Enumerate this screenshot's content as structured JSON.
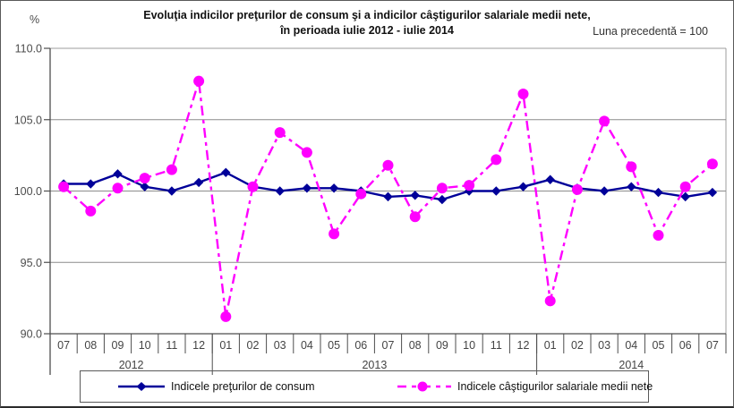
{
  "title": {
    "line1": "Evoluţia indicilor preţurilor de consum şi a indicilor câştigurilor salariale medii nete,",
    "line2": "în perioada iulie 2012 - iulie 2014"
  },
  "note": "Luna precedentă = 100",
  "y_axis_unit": "%",
  "chart_data": {
    "type": "line",
    "title": "Evoluţia indicilor preţurilor de consum şi a indicilor câştigurilor salariale medii nete, în perioada iulie 2012 - iulie 2014",
    "note": "Luna precedentă = 100",
    "ylabel": "%",
    "ylim": [
      90,
      110
    ],
    "yticks": [
      {
        "value": 110,
        "label": "110.0"
      },
      {
        "value": 105,
        "label": "105.0"
      },
      {
        "value": 100,
        "label": "100.0"
      },
      {
        "value": 95,
        "label": "95.0"
      },
      {
        "value": 90,
        "label": "90.0"
      }
    ],
    "grid": "horizontal-only",
    "legend_position": "bottom",
    "categories": [
      "07",
      "08",
      "09",
      "10",
      "11",
      "12",
      "01",
      "02",
      "03",
      "04",
      "05",
      "06",
      "07",
      "08",
      "09",
      "10",
      "11",
      "12",
      "01",
      "02",
      "03",
      "04",
      "05",
      "06",
      "07"
    ],
    "year_groups": [
      {
        "label": "2012",
        "count": 6
      },
      {
        "label": "2013",
        "count": 12
      },
      {
        "label": "2014",
        "count": 7
      }
    ],
    "series": [
      {
        "name": "Indicele preţurilor de consum",
        "color": "#000099",
        "marker": "diamond",
        "line_style": "solid",
        "values": [
          100.5,
          100.5,
          101.2,
          100.3,
          100.0,
          100.6,
          101.3,
          100.3,
          100.0,
          100.2,
          100.2,
          100.0,
          99.6,
          99.7,
          99.4,
          100.0,
          100.0,
          100.3,
          100.8,
          100.2,
          100.0,
          100.3,
          99.9,
          99.6,
          99.9
        ]
      },
      {
        "name": "Indicele câştigurilor salariale medii nete",
        "color": "#FF00FF",
        "marker": "circle",
        "line_style": "dash-dot",
        "values": [
          100.3,
          98.6,
          100.2,
          100.9,
          101.5,
          107.7,
          91.2,
          100.3,
          104.1,
          102.7,
          97.0,
          99.8,
          101.8,
          98.2,
          100.2,
          100.4,
          102.2,
          106.8,
          92.3,
          100.1,
          104.9,
          101.7,
          96.9,
          100.3,
          101.9
        ]
      }
    ]
  }
}
